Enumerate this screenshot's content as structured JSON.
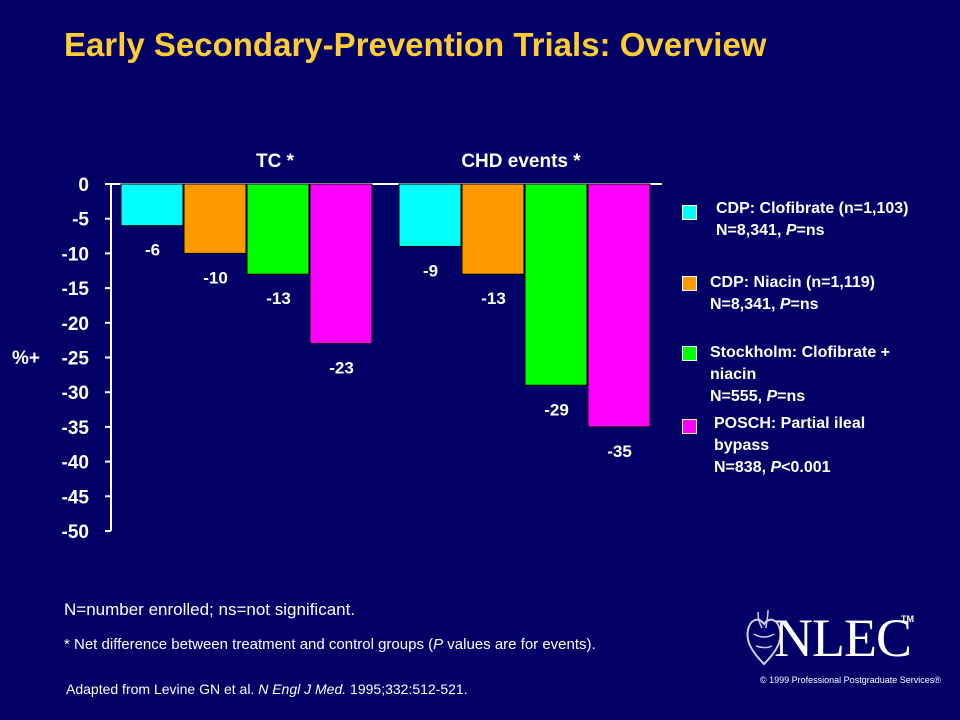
{
  "title": "Early Secondary-Prevention Trials: Overview",
  "chart_data": {
    "type": "bar",
    "categories": [
      "TC *",
      "CHD events *"
    ],
    "ylabel": "%+",
    "ylim": [
      -50,
      0
    ],
    "yticks": [
      0,
      -5,
      -10,
      -15,
      -20,
      -25,
      -30,
      -35,
      -40,
      -45,
      -50
    ],
    "series": [
      {
        "name": "CDP: Clofibrate (n=1,103)\nN=8,341, P=ns",
        "color": "#00ffff",
        "values": [
          -6,
          -9
        ]
      },
      {
        "name": "CDP: Niacin (n=1,119)\nN=8,341, P=ns",
        "color": "#ff9900",
        "values": [
          -10,
          -13
        ]
      },
      {
        "name": "Stockholm: Clofibrate + niacin\nN=555, P=ns",
        "color": "#00ff00",
        "values": [
          -13,
          -29
        ]
      },
      {
        "name": "POSCH: Partial ileal bypass\nN=838, P<0.001",
        "color": "#ff00ff",
        "values": [
          -23,
          -35
        ]
      }
    ],
    "data_labels": [
      [
        "-6",
        "-9"
      ],
      [
        "-10",
        "-13"
      ],
      [
        "-13",
        "-29"
      ],
      [
        "-23",
        "-35"
      ]
    ],
    "legend": "right"
  },
  "legend": [
    {
      "line1": "CDP: Clofibrate (n=1,103)",
      "line2": "N=8,341, ",
      "pval": "P",
      "rest": "=ns"
    },
    {
      "line1": "CDP: Niacin (n=1,119)",
      "line2": "N=8,341, ",
      "pval": "P",
      "rest": "=ns"
    },
    {
      "line1": "Stockholm: Clofibrate +",
      "line1b": "niacin",
      "line2": "N=555, ",
      "pval": "P",
      "rest": "=ns"
    },
    {
      "line1": "POSCH: Partial ileal",
      "line1b": "bypass",
      "line2": "N=838, ",
      "pval": "P",
      "rest": "<0.001"
    }
  ],
  "notes": {
    "n1": "N=number enrolled; ns=not significant.",
    "n2a": "* Net difference between treatment and control groups (",
    "n2p": "P",
    "n2b": " values are for events).",
    "n3a": "Adapted from Levine GN et al. ",
    "n3j": "N Engl J Med.",
    "n3b": " 1995;332:512-521."
  },
  "logo": {
    "text": "NLEC",
    "tm": "TM"
  },
  "copyright": "© 1999 Professional Postgraduate Services®"
}
